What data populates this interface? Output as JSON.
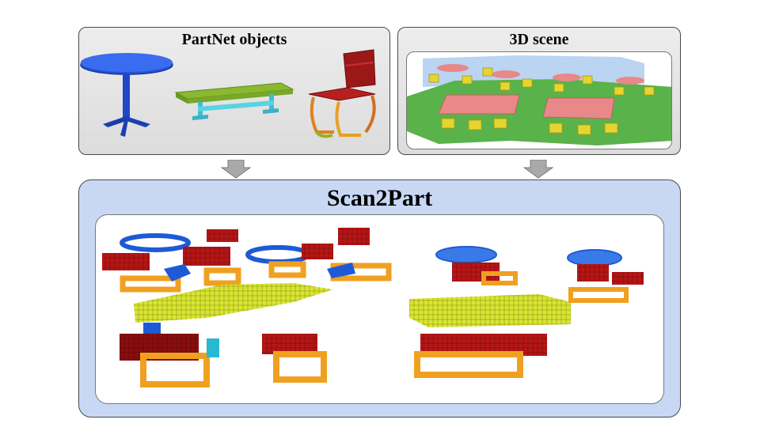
{
  "panels": {
    "partnet": {
      "title": "PartNet objects"
    },
    "scene": {
      "title": "3D scene"
    },
    "scan2part": {
      "title": "Scan2Part"
    }
  },
  "colors": {
    "panel_fill": "#e6e6e6",
    "scan2part_fill": "#c8d8f4",
    "arrow_fill": "#a9a9a9",
    "part_blue": "#1e5ad6",
    "part_red": "#b81515",
    "part_yellow": "#d9e630",
    "part_orange": "#f0a020",
    "scene_floor": "#5ab24a",
    "scene_table": "#e88888",
    "scene_chair": "#e6d430"
  }
}
